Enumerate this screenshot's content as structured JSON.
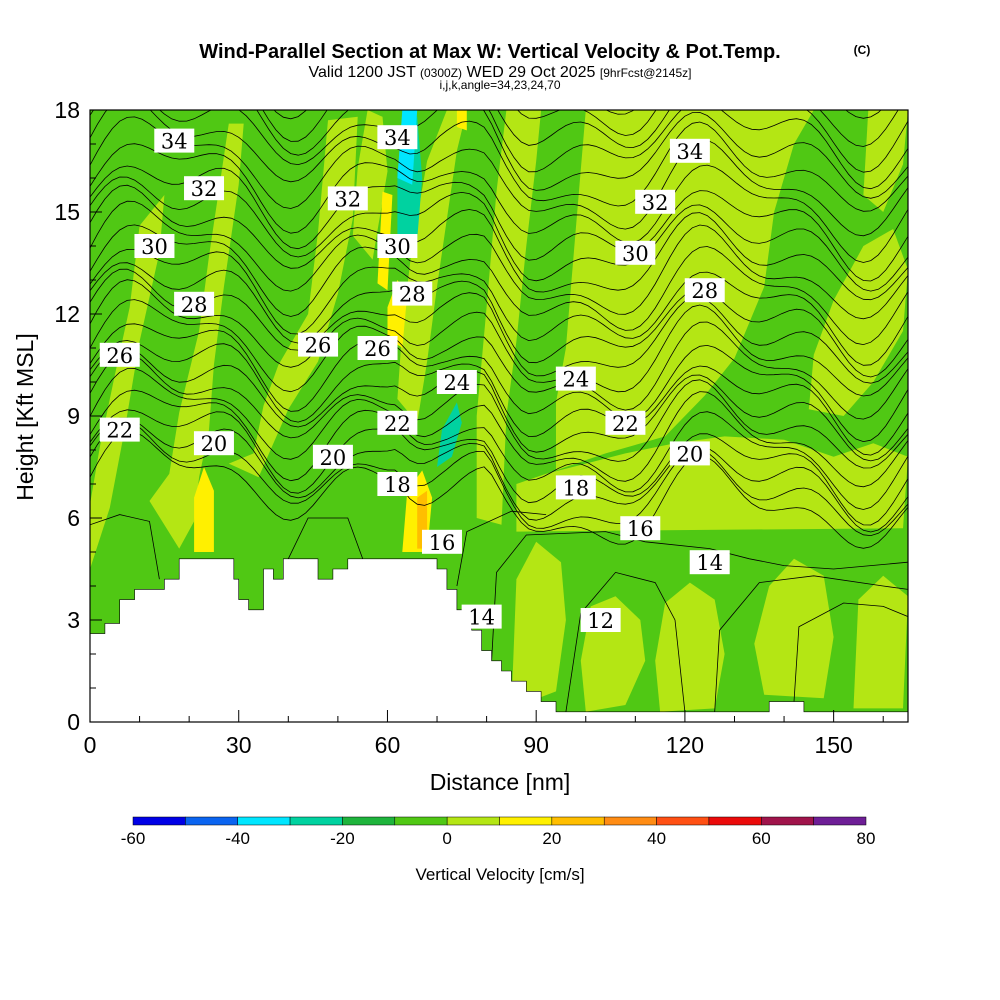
{
  "chart_data": {
    "type": "heatmap",
    "title": "Wind-Parallel Section at Max W: Vertical Velocity & Pot.Temp.",
    "title_mark": "(C)",
    "subtitle_prefix": "Valid 1200 JST",
    "subtitle_utc": "(0300Z)",
    "subtitle_date": "WED 29 Oct 2025",
    "subtitle_fcst": "[9hrFcst@2145z]",
    "subtitle_line2": "i,j,k,angle=34,23,24,70",
    "xlabel": "Distance [nm]",
    "ylabel": "Height [Kft MSL]",
    "xlim": [
      0,
      165
    ],
    "ylim": [
      0,
      18
    ],
    "xticks": [
      0,
      30,
      60,
      90,
      120,
      150
    ],
    "yticks": [
      0,
      3,
      6,
      9,
      12,
      15,
      18
    ],
    "colorbar": {
      "label": "Vertical Velocity [cm/s]",
      "ticks": [
        -60,
        -40,
        -20,
        0,
        20,
        40,
        60,
        80
      ],
      "bins": [
        {
          "from": -60,
          "to": -50,
          "color": "#0000e6"
        },
        {
          "from": -50,
          "to": -40,
          "color": "#0a64f0"
        },
        {
          "from": -40,
          "to": -30,
          "color": "#00e6ff"
        },
        {
          "from": -30,
          "to": -20,
          "color": "#00d2a0"
        },
        {
          "from": -20,
          "to": -10,
          "color": "#1eb43c"
        },
        {
          "from": -10,
          "to": 0,
          "color": "#50c814"
        },
        {
          "from": 0,
          "to": 10,
          "color": "#b4e614"
        },
        {
          "from": 10,
          "to": 20,
          "color": "#fff000"
        },
        {
          "from": 20,
          "to": 30,
          "color": "#ffbe00"
        },
        {
          "from": 30,
          "to": 40,
          "color": "#ff8c14"
        },
        {
          "from": 40,
          "to": 50,
          "color": "#ff5014"
        },
        {
          "from": 50,
          "to": 60,
          "color": "#eb0a0a"
        },
        {
          "from": 60,
          "to": 70,
          "color": "#a0144b"
        },
        {
          "from": 70,
          "to": 80,
          "color": "#6e1e96"
        }
      ]
    },
    "terrain_height_kft": [
      [
        0,
        2.6
      ],
      [
        3,
        2.6
      ],
      [
        3,
        2.9
      ],
      [
        6,
        2.9
      ],
      [
        6,
        3.6
      ],
      [
        9,
        3.6
      ],
      [
        9,
        3.9
      ],
      [
        15,
        3.9
      ],
      [
        15,
        4.2
      ],
      [
        18,
        4.2
      ],
      [
        18,
        4.8
      ],
      [
        29,
        4.8
      ],
      [
        29,
        4.2
      ],
      [
        30,
        4.2
      ],
      [
        30,
        3.6
      ],
      [
        32,
        3.6
      ],
      [
        32,
        3.3
      ],
      [
        35,
        3.3
      ],
      [
        35,
        4.5
      ],
      [
        37,
        4.5
      ],
      [
        37,
        4.2
      ],
      [
        39,
        4.2
      ],
      [
        39,
        4.8
      ],
      [
        46,
        4.8
      ],
      [
        46,
        4.2
      ],
      [
        49,
        4.2
      ],
      [
        49,
        4.5
      ],
      [
        52,
        4.5
      ],
      [
        52,
        4.8
      ],
      [
        70,
        4.8
      ],
      [
        70,
        4.5
      ],
      [
        72,
        4.5
      ],
      [
        72,
        3.9
      ],
      [
        74,
        3.9
      ],
      [
        74,
        3.3
      ],
      [
        77,
        3.3
      ],
      [
        77,
        2.7
      ],
      [
        79,
        2.7
      ],
      [
        79,
        2.1
      ],
      [
        81,
        2.1
      ],
      [
        81,
        1.8
      ],
      [
        83,
        1.8
      ],
      [
        83,
        1.5
      ],
      [
        85,
        1.5
      ],
      [
        85,
        1.2
      ],
      [
        88,
        1.2
      ],
      [
        88,
        0.9
      ],
      [
        91,
        0.9
      ],
      [
        91,
        0.6
      ],
      [
        94,
        0.6
      ],
      [
        94,
        0.3
      ],
      [
        137,
        0.3
      ],
      [
        137,
        0.6
      ],
      [
        144,
        0.6
      ],
      [
        144,
        0.3
      ],
      [
        165,
        0.3
      ]
    ],
    "vertical_velocity_regions": [
      {
        "value": 5,
        "polygon": [
          [
            0,
            4.5
          ],
          [
            4,
            6.3
          ],
          [
            7,
            8.6
          ],
          [
            10,
            11.2
          ],
          [
            14,
            13.8
          ],
          [
            15,
            15.5
          ],
          [
            10,
            14.6
          ],
          [
            8,
            12.2
          ],
          [
            5,
            10.2
          ],
          [
            2,
            8.1
          ],
          [
            0,
            6.4
          ]
        ]
      },
      {
        "value": 5,
        "polygon": [
          [
            12,
            6.5
          ],
          [
            16,
            7.3
          ],
          [
            18,
            9.1
          ],
          [
            22,
            11.5
          ],
          [
            24,
            13.7
          ],
          [
            28,
            17.6
          ],
          [
            31,
            17.6
          ],
          [
            30,
            15.8
          ],
          [
            27,
            12.8
          ],
          [
            25,
            10.5
          ],
          [
            24,
            8.6
          ],
          [
            22,
            7.2
          ],
          [
            21,
            5.9
          ],
          [
            18,
            5.1
          ]
        ]
      },
      {
        "value": 5,
        "polygon": [
          [
            28,
            7.6
          ],
          [
            33,
            7.9
          ],
          [
            35,
            9.3
          ],
          [
            38,
            10.5
          ],
          [
            44,
            12.0
          ],
          [
            46,
            14.4
          ],
          [
            48,
            17.7
          ],
          [
            54,
            17.8
          ],
          [
            53,
            14.8
          ],
          [
            50,
            12.6
          ],
          [
            46,
            10.6
          ],
          [
            40,
            9.2
          ],
          [
            34,
            7.2
          ]
        ]
      },
      {
        "value": 5,
        "polygon": [
          [
            53,
            14.3
          ],
          [
            57,
            13.6
          ],
          [
            60,
            16.2
          ],
          [
            59,
            17.8
          ],
          [
            56,
            18
          ],
          [
            54,
            16.3
          ]
        ]
      },
      {
        "value": 5,
        "polygon": [
          [
            62,
            9.5
          ],
          [
            66,
            8.8
          ],
          [
            68,
            10.6
          ],
          [
            70,
            12.8
          ],
          [
            72,
            14.8
          ],
          [
            74,
            16.8
          ],
          [
            76,
            18
          ],
          [
            72,
            18
          ],
          [
            68,
            16.5
          ],
          [
            65,
            14.0
          ],
          [
            63,
            11.6
          ]
        ]
      },
      {
        "value": 5,
        "polygon": [
          [
            78,
            6.0
          ],
          [
            83,
            5.8
          ],
          [
            84,
            9.0
          ],
          [
            86,
            11.2
          ],
          [
            88,
            14.0
          ],
          [
            90,
            16.5
          ],
          [
            91,
            18
          ],
          [
            84,
            18
          ],
          [
            82,
            15.6
          ],
          [
            80,
            12.2
          ],
          [
            78,
            9.0
          ]
        ]
      },
      {
        "value": 5,
        "polygon": [
          [
            86,
            5.6
          ],
          [
            164,
            5.7
          ],
          [
            165,
            7.8
          ],
          [
            158,
            8.2
          ],
          [
            150,
            7.8
          ],
          [
            140,
            8.3
          ],
          [
            128,
            8.4
          ],
          [
            118,
            8.2
          ],
          [
            108,
            7.9
          ],
          [
            100,
            7.6
          ],
          [
            92,
            7.3
          ],
          [
            86,
            7.0
          ]
        ]
      },
      {
        "value": 5,
        "polygon": [
          [
            94,
            7.4
          ],
          [
            104,
            7.9
          ],
          [
            116,
            8.4
          ],
          [
            124,
            9.6
          ],
          [
            130,
            10.7
          ],
          [
            136,
            12.8
          ],
          [
            138,
            15.0
          ],
          [
            142,
            17.0
          ],
          [
            146,
            18
          ],
          [
            100,
            18
          ],
          [
            98,
            14.5
          ],
          [
            96,
            11.0
          ],
          [
            94,
            9.4
          ]
        ]
      },
      {
        "value": 5,
        "polygon": [
          [
            145,
            9.2
          ],
          [
            152,
            9.0
          ],
          [
            158,
            10.0
          ],
          [
            164,
            11.5
          ],
          [
            165,
            13.3
          ],
          [
            162,
            14.5
          ],
          [
            156,
            14.0
          ],
          [
            150,
            12.4
          ],
          [
            146,
            10.8
          ]
        ]
      },
      {
        "value": 5,
        "polygon": [
          [
            156,
            15.5
          ],
          [
            160,
            15.0
          ],
          [
            164,
            16.4
          ],
          [
            165,
            18
          ],
          [
            157,
            18
          ]
        ]
      },
      {
        "value": 5,
        "polygon": [
          [
            85,
            0.4
          ],
          [
            94,
            0.9
          ],
          [
            96,
            3.0
          ],
          [
            95,
            4.7
          ],
          [
            90,
            5.3
          ],
          [
            86,
            4.2
          ]
        ]
      },
      {
        "value": 5,
        "polygon": [
          [
            100,
            0.3
          ],
          [
            108,
            0.5
          ],
          [
            112,
            1.8
          ],
          [
            111,
            3.0
          ],
          [
            106,
            3.7
          ],
          [
            101,
            3.4
          ],
          [
            99,
            1.8
          ]
        ]
      },
      {
        "value": 5,
        "polygon": [
          [
            115,
            0.3
          ],
          [
            126,
            0.4
          ],
          [
            128,
            2.0
          ],
          [
            126,
            3.6
          ],
          [
            121,
            4.1
          ],
          [
            116,
            3.5
          ],
          [
            114,
            1.8
          ]
        ]
      },
      {
        "value": 5,
        "polygon": [
          [
            136,
            0.8
          ],
          [
            148,
            0.7
          ],
          [
            150,
            2.5
          ],
          [
            148,
            4.3
          ],
          [
            142,
            4.8
          ],
          [
            137,
            4.0
          ],
          [
            134,
            2.3
          ]
        ]
      },
      {
        "value": 5,
        "polygon": [
          [
            154,
            0.4
          ],
          [
            164,
            0.4
          ],
          [
            165,
            3.7
          ],
          [
            160,
            4.3
          ],
          [
            155,
            3.6
          ]
        ]
      },
      {
        "value": 15,
        "polygon": [
          [
            21,
            5.0
          ],
          [
            25,
            5.0
          ],
          [
            25,
            6.8
          ],
          [
            23,
            7.5
          ],
          [
            21,
            6.6
          ]
        ]
      },
      {
        "value": 15,
        "polygon": [
          [
            63,
            5.0
          ],
          [
            68,
            5.0
          ],
          [
            69,
            6.6
          ],
          [
            67,
            7.4
          ],
          [
            64,
            6.8
          ]
        ]
      },
      {
        "value": 15,
        "polygon": [
          [
            60,
            11.3
          ],
          [
            63,
            11.0
          ],
          [
            64,
            12.6
          ],
          [
            62,
            13.0
          ],
          [
            60,
            12.2
          ]
        ]
      },
      {
        "value": 15,
        "polygon": [
          [
            58,
            12.9
          ],
          [
            60,
            12.7
          ],
          [
            61,
            15.5
          ],
          [
            59,
            15.6
          ]
        ]
      },
      {
        "value": 15,
        "polygon": [
          [
            74,
            17.5
          ],
          [
            76,
            17.4
          ],
          [
            76,
            18
          ],
          [
            74,
            18
          ]
        ]
      },
      {
        "value": 25,
        "polygon": [
          [
            66,
            5.1
          ],
          [
            68,
            5.1
          ],
          [
            68,
            6.8
          ],
          [
            66,
            6.6
          ]
        ]
      },
      {
        "value": -5,
        "polygon": [
          [
            0,
            15.0
          ],
          [
            3,
            14.2
          ],
          [
            6,
            14.6
          ],
          [
            8,
            16.2
          ],
          [
            7,
            18
          ],
          [
            0,
            18
          ]
        ]
      },
      {
        "value": -25,
        "polygon": [
          [
            70,
            7.5
          ],
          [
            73,
            7.8
          ],
          [
            75,
            8.8
          ],
          [
            74,
            9.4
          ],
          [
            71,
            8.6
          ]
        ]
      },
      {
        "value": -25,
        "polygon": [
          [
            62,
            14.0
          ],
          [
            66,
            14.2
          ],
          [
            67,
            16.0
          ],
          [
            66,
            17.8
          ],
          [
            64,
            17.8
          ],
          [
            62,
            16.2
          ]
        ]
      },
      {
        "value": -35,
        "polygon": [
          [
            62,
            16.0
          ],
          [
            65,
            15.8
          ],
          [
            66,
            18
          ],
          [
            63,
            18
          ]
        ]
      }
    ],
    "potential_temperature_labels": [
      {
        "text": "34",
        "x": 17,
        "y": 17.1
      },
      {
        "text": "34",
        "x": 62,
        "y": 17.2
      },
      {
        "text": "34",
        "x": 121,
        "y": 16.8
      },
      {
        "text": "32",
        "x": 23,
        "y": 15.7
      },
      {
        "text": "32",
        "x": 52,
        "y": 15.4
      },
      {
        "text": "32",
        "x": 114,
        "y": 15.3
      },
      {
        "text": "30",
        "x": 13,
        "y": 14.0
      },
      {
        "text": "30",
        "x": 62,
        "y": 14.0
      },
      {
        "text": "30",
        "x": 110,
        "y": 13.8
      },
      {
        "text": "28",
        "x": 21,
        "y": 12.3
      },
      {
        "text": "28",
        "x": 65,
        "y": 12.6
      },
      {
        "text": "28",
        "x": 124,
        "y": 12.7
      },
      {
        "text": "26",
        "x": 6,
        "y": 10.8
      },
      {
        "text": "26",
        "x": 46,
        "y": 11.1
      },
      {
        "text": "26",
        "x": 58,
        "y": 11.0
      },
      {
        "text": "24",
        "x": 74,
        "y": 10.0
      },
      {
        "text": "24",
        "x": 98,
        "y": 10.1
      },
      {
        "text": "22",
        "x": 6,
        "y": 8.6
      },
      {
        "text": "22",
        "x": 62,
        "y": 8.8
      },
      {
        "text": "22",
        "x": 108,
        "y": 8.8
      },
      {
        "text": "20",
        "x": 25,
        "y": 8.2
      },
      {
        "text": "20",
        "x": 49,
        "y": 7.8
      },
      {
        "text": "20",
        "x": 121,
        "y": 7.9
      },
      {
        "text": "18",
        "x": 62,
        "y": 7.0
      },
      {
        "text": "18",
        "x": 98,
        "y": 6.9
      },
      {
        "text": "16",
        "x": 71,
        "y": 5.3
      },
      {
        "text": "16",
        "x": 111,
        "y": 5.7
      },
      {
        "text": "14",
        "x": 79,
        "y": 3.1
      },
      {
        "text": "14",
        "x": 125,
        "y": 4.7
      },
      {
        "text": "12",
        "x": 103,
        "y": 3.0
      }
    ],
    "potential_temperature_values": [
      12,
      14,
      16,
      18,
      20,
      22,
      24,
      26,
      28,
      30,
      32,
      34
    ]
  }
}
